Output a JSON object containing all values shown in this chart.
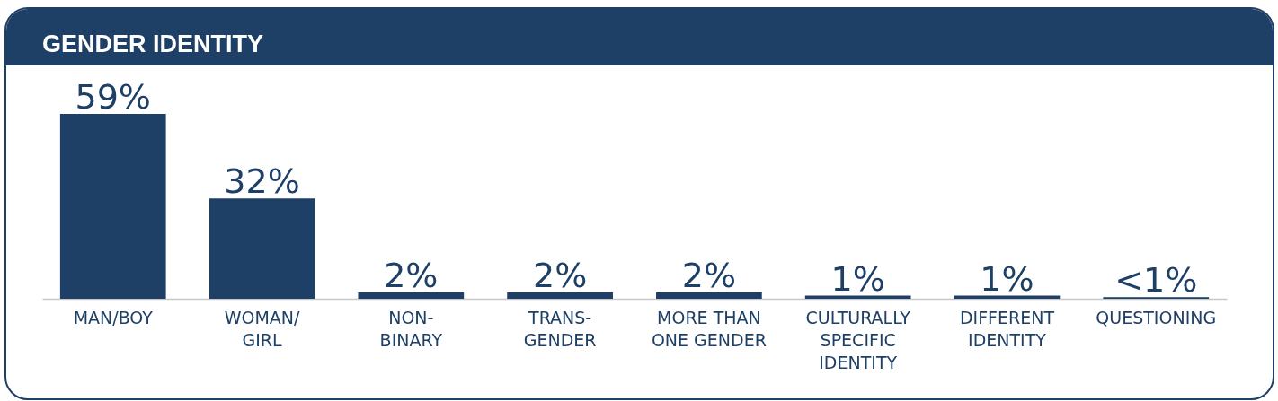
{
  "chart_data": {
    "type": "bar",
    "title": "GENDER IDENTITY",
    "categories": [
      "MAN/BOY",
      "WOMAN/GIRL",
      "NON-BINARY",
      "TRANS-GENDER",
      "MORE THAN ONE GENDER",
      "CULTURALLY SPECIFIC IDENTITY",
      "DIFFERENT IDENTITY",
      "QUESTIONING"
    ],
    "values": [
      59,
      32,
      2,
      2,
      2,
      1,
      1,
      0.5
    ],
    "value_labels": [
      "59%",
      "32%",
      "2%",
      "2%",
      "2%",
      "1%",
      "1%",
      "<1%"
    ],
    "color": "#1e3f66",
    "grid": false
  }
}
